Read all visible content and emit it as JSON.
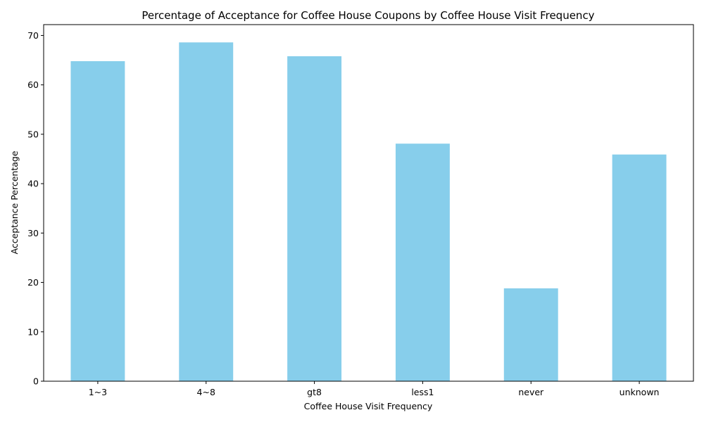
{
  "chart_data": {
    "type": "bar",
    "title": "Percentage of Acceptance for Coffee House Coupons by Coffee House Visit Frequency",
    "xlabel": "Coffee House Visit Frequency",
    "ylabel": "Acceptance Percentage",
    "categories": [
      "1~3",
      "4~8",
      "gt8",
      "less1",
      "never",
      "unknown"
    ],
    "values": [
      64.8,
      68.6,
      65.8,
      48.1,
      18.8,
      45.9
    ],
    "ylim": [
      0,
      72.2
    ],
    "yticks": [
      0,
      10,
      20,
      30,
      40,
      50,
      60,
      70
    ],
    "bar_color": "#87CEEB",
    "grid": false,
    "legend": "none"
  }
}
